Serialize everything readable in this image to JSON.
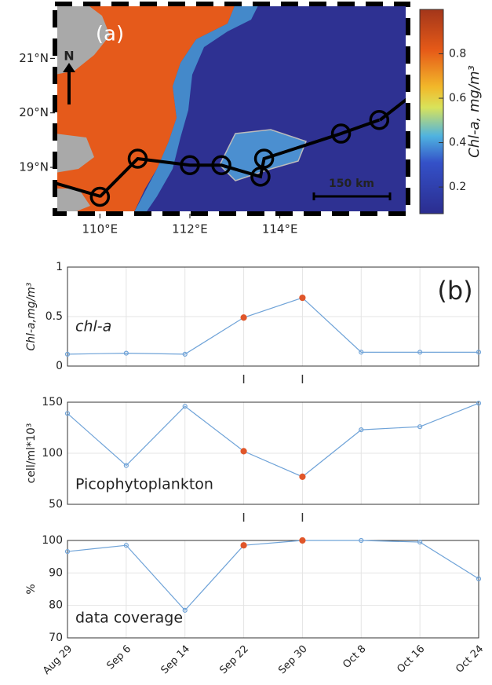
{
  "chart_data": [
    {
      "type": "map",
      "panel_label": "(a)",
      "north": "N",
      "scale_bar": "150 km",
      "xlim": [
        109,
        116.85
      ],
      "ylim": [
        18.15,
        22.0
      ],
      "xticks": [
        {
          "value": 110,
          "label": "110°E"
        },
        {
          "value": 112,
          "label": "112°E"
        },
        {
          "value": 114,
          "label": "114°E"
        }
      ],
      "yticks": [
        {
          "value": 19,
          "label": "19°N"
        },
        {
          "value": 20,
          "label": "20°N"
        },
        {
          "value": 21,
          "label": "21°N"
        }
      ],
      "track": {
        "lon": [
          110.0,
          110.84,
          112.0,
          112.7,
          113.57,
          113.65,
          115.36,
          116.21
        ],
        "lat": [
          18.46,
          19.16,
          19.04,
          19.04,
          18.83,
          19.16,
          19.62,
          19.87
        ]
      },
      "colorbar": {
        "label": "Chl-a, mg/m³",
        "clim": [
          0.08,
          1.0
        ],
        "ticks": [
          0.2,
          0.4,
          0.6,
          0.8
        ]
      }
    },
    {
      "type": "line",
      "panel_label": "(b)",
      "categories": [
        "Aug 29",
        "Sep 6",
        "Sep 14",
        "Sep 22",
        "Sep 30",
        "Oct 8",
        "Oct 16",
        "Oct 24"
      ],
      "color": "#6fa3d8",
      "highlight_color": "#e0562a",
      "highlight": [
        3,
        4
      ],
      "grid": true,
      "panels": [
        {
          "label": "chl-a",
          "ylabel": "Chl-a,mg/m³",
          "ylim": [
            0,
            1
          ],
          "yticks": [
            0,
            0.5,
            1
          ],
          "values": [
            0.12,
            0.13,
            0.12,
            0.49,
            0.69,
            0.14,
            0.14,
            0.14
          ]
        },
        {
          "label": "Picophytoplankton",
          "ylabel": "cell/ml*10³",
          "ylim": [
            50,
            150
          ],
          "yticks": [
            50,
            100,
            150
          ],
          "values": [
            139,
            88,
            146,
            102,
            77,
            123,
            126,
            149
          ]
        },
        {
          "label": "data coverage",
          "ylabel": "%",
          "ylim": [
            70,
            100
          ],
          "yticks": [
            70,
            80,
            90,
            100
          ],
          "values": [
            96.6,
            98.5,
            78.5,
            98.5,
            100,
            100,
            99.5,
            88.2
          ]
        }
      ]
    }
  ]
}
